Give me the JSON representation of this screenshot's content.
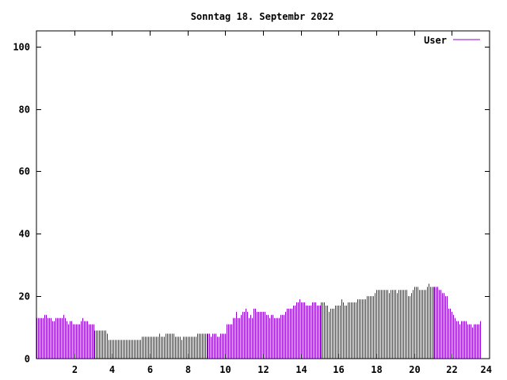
{
  "chart_data": {
    "type": "bar",
    "title": "Sonntag 18. Septembr 2022",
    "xlabel": "",
    "ylabel": "",
    "xlim": [
      0,
      24
    ],
    "ylim": [
      0,
      105
    ],
    "x_ticks": [
      2,
      4,
      6,
      8,
      10,
      12,
      14,
      16,
      18,
      20,
      22,
      24
    ],
    "y_ticks": [
      0,
      20,
      40,
      60,
      80,
      100
    ],
    "grid": false,
    "legend_position": "top-right",
    "colors": {
      "series": "#9400d3",
      "axes": "#000000",
      "background": "#ffffff"
    },
    "series": [
      {
        "name": "User",
        "bin_minutes": 5,
        "values": [
          13,
          13,
          13,
          13,
          13,
          14,
          14,
          13,
          13,
          13,
          12,
          12,
          13,
          13,
          13,
          13,
          13,
          14,
          13,
          12,
          11,
          12,
          12,
          11,
          11,
          11,
          11,
          11,
          12,
          13,
          12,
          12,
          12,
          11,
          11,
          11,
          11,
          9,
          9,
          9,
          9,
          9,
          9,
          9,
          9,
          8,
          6,
          6,
          6,
          6,
          6,
          6,
          6,
          6,
          6,
          6,
          6,
          6,
          6,
          6,
          6,
          6,
          6,
          6,
          6,
          6,
          6,
          7,
          7,
          7,
          7,
          7,
          7,
          7,
          7,
          7,
          7,
          7,
          8,
          7,
          7,
          7,
          8,
          8,
          8,
          8,
          8,
          8,
          7,
          7,
          7,
          7,
          6,
          7,
          7,
          7,
          7,
          7,
          7,
          7,
          7,
          7,
          8,
          8,
          8,
          8,
          8,
          8,
          8,
          8,
          8,
          7,
          8,
          8,
          8,
          7,
          7,
          8,
          8,
          8,
          8,
          11,
          11,
          11,
          11,
          13,
          13,
          15,
          13,
          13,
          14,
          15,
          15,
          16,
          15,
          13,
          14,
          13,
          16,
          16,
          15,
          15,
          15,
          15,
          15,
          15,
          14,
          14,
          13,
          14,
          14,
          13,
          13,
          13,
          13,
          14,
          14,
          14,
          15,
          16,
          16,
          16,
          16,
          17,
          17,
          18,
          18,
          19,
          18,
          18,
          18,
          17,
          17,
          17,
          17,
          18,
          18,
          18,
          17,
          17,
          17,
          18,
          18,
          18,
          17,
          17,
          15,
          16,
          16,
          16,
          17,
          17,
          17,
          17,
          19,
          18,
          17,
          17,
          18,
          18,
          18,
          18,
          18,
          18,
          19,
          19,
          19,
          19,
          19,
          19,
          20,
          20,
          20,
          20,
          20,
          21,
          22,
          22,
          22,
          22,
          22,
          22,
          22,
          22,
          21,
          22,
          22,
          22,
          22,
          21,
          22,
          22,
          22,
          22,
          22,
          22,
          20,
          20,
          21,
          22,
          23,
          23,
          23,
          22,
          22,
          22,
          22,
          22,
          23,
          24,
          23,
          23,
          23,
          23,
          23,
          23,
          22,
          22,
          21,
          21,
          20,
          20,
          16,
          16,
          15,
          14,
          13,
          12,
          12,
          11,
          12,
          12,
          12,
          12,
          11,
          11,
          11,
          10,
          11,
          11,
          11,
          11,
          12
        ]
      }
    ]
  }
}
